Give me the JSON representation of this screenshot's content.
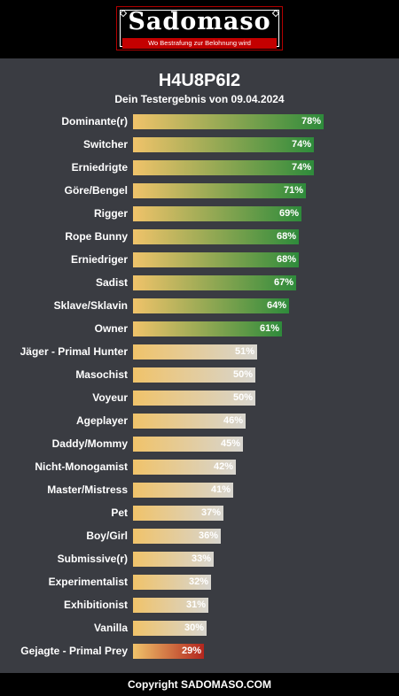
{
  "logo": {
    "word": "Sadomaso",
    "tagline": "Wo Bestrafung zur Belohnung wird"
  },
  "page": {
    "title": "H4U8P6I2",
    "subtitle": "Dein Testergebnis von 09.04.2024"
  },
  "colors": {
    "bar_start": "#f0c36a",
    "high_end": "#2e8b3b",
    "mid_end": "#d7d5cf",
    "low_end": "#b3261e",
    "background": "#3a3c42"
  },
  "results": [
    {
      "label": "Dominante(r)",
      "pct": "78%",
      "value": 78,
      "style": "high"
    },
    {
      "label": "Switcher",
      "pct": "74%",
      "value": 74,
      "style": "high"
    },
    {
      "label": "Erniedrigte",
      "pct": "74%",
      "value": 74,
      "style": "high"
    },
    {
      "label": "Göre/Bengel",
      "pct": "71%",
      "value": 71,
      "style": "high"
    },
    {
      "label": "Rigger",
      "pct": "69%",
      "value": 69,
      "style": "high"
    },
    {
      "label": "Rope Bunny",
      "pct": "68%",
      "value": 68,
      "style": "high"
    },
    {
      "label": "Erniedriger",
      "pct": "68%",
      "value": 68,
      "style": "high"
    },
    {
      "label": "Sadist",
      "pct": "67%",
      "value": 67,
      "style": "high"
    },
    {
      "label": "Sklave/Sklavin",
      "pct": "64%",
      "value": 64,
      "style": "high"
    },
    {
      "label": "Owner",
      "pct": "61%",
      "value": 61,
      "style": "high"
    },
    {
      "label": "Jäger - Primal Hunter",
      "pct": "51%",
      "value": 51,
      "style": "mid"
    },
    {
      "label": "Masochist",
      "pct": "50%",
      "value": 50,
      "style": "mid"
    },
    {
      "label": "Voyeur",
      "pct": "50%",
      "value": 50,
      "style": "mid"
    },
    {
      "label": "Ageplayer",
      "pct": "46%",
      "value": 46,
      "style": "mid"
    },
    {
      "label": "Daddy/Mommy",
      "pct": "45%",
      "value": 45,
      "style": "mid"
    },
    {
      "label": "Nicht-Monogamist",
      "pct": "42%",
      "value": 42,
      "style": "mid"
    },
    {
      "label": "Master/Mistress",
      "pct": "41%",
      "value": 41,
      "style": "mid"
    },
    {
      "label": "Pet",
      "pct": "37%",
      "value": 37,
      "style": "mid"
    },
    {
      "label": "Boy/Girl",
      "pct": "36%",
      "value": 36,
      "style": "mid"
    },
    {
      "label": "Submissive(r)",
      "pct": "33%",
      "value": 33,
      "style": "mid"
    },
    {
      "label": "Experimentalist",
      "pct": "32%",
      "value": 32,
      "style": "mid"
    },
    {
      "label": "Exhibitionist",
      "pct": "31%",
      "value": 31,
      "style": "mid"
    },
    {
      "label": "Vanilla",
      "pct": "30%",
      "value": 30,
      "style": "mid"
    },
    {
      "label": "Gejagte - Primal Prey",
      "pct": "29%",
      "value": 29,
      "style": "low"
    }
  ],
  "footer": {
    "text": "Copyright SADOMASO.COM"
  }
}
